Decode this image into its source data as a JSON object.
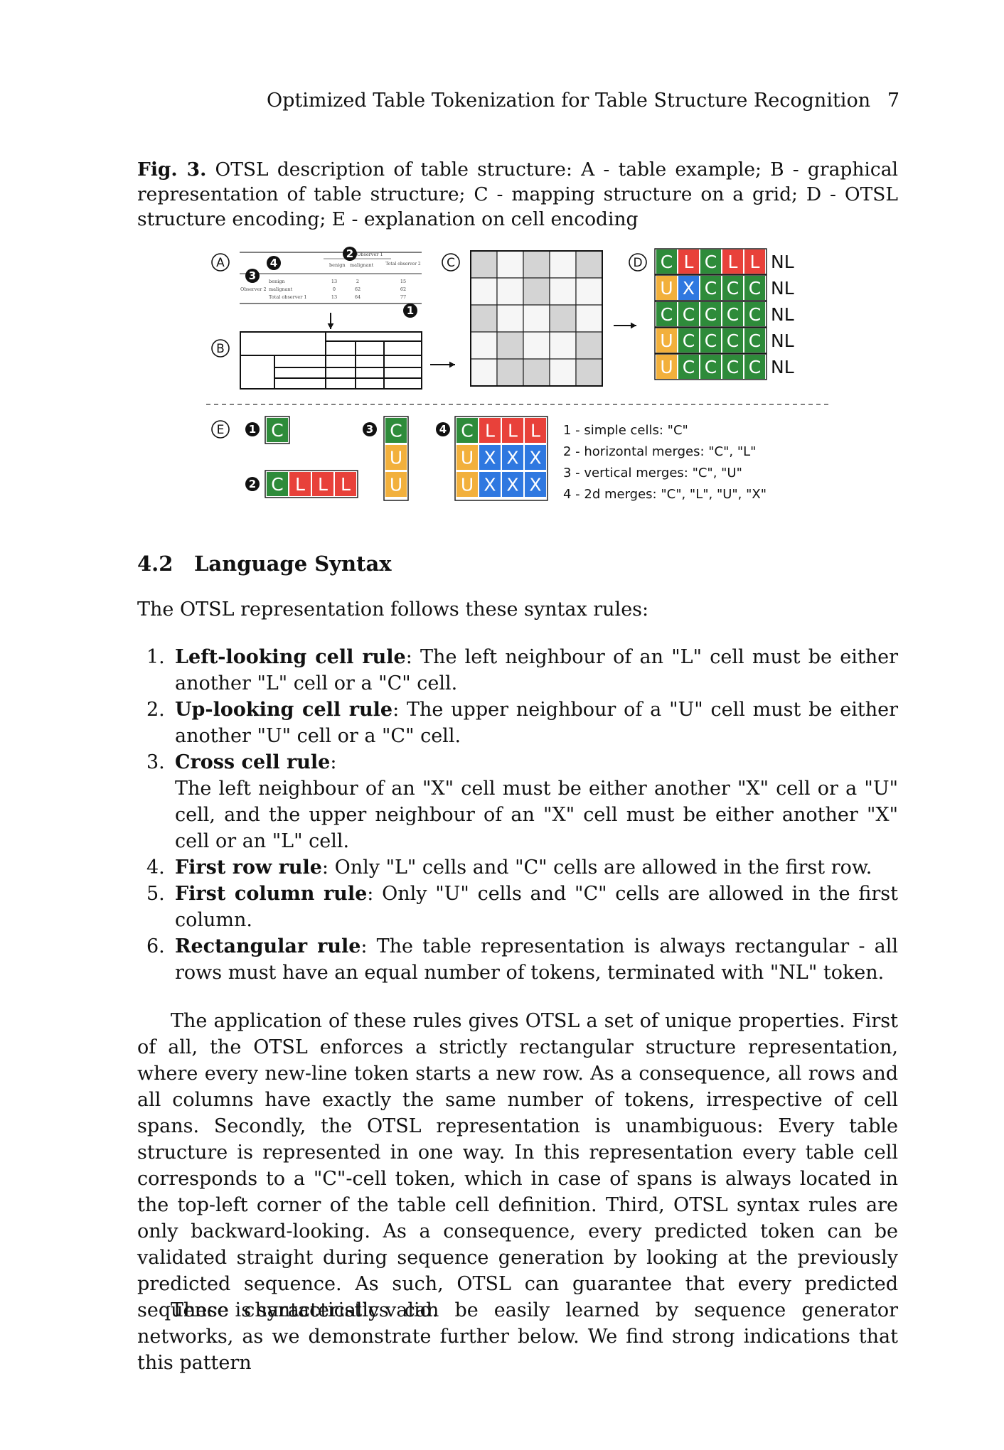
{
  "running_head": {
    "title": "Optimized Table Tokenization for Table Structure Recognition",
    "page_number": "7"
  },
  "caption": {
    "label": "Fig. 3.",
    "text": "OTSL description of table structure: A - table example; B - graphical representation of table structure; C - mapping structure on a grid; D - OTSL structure encoding; E - explanation on cell encoding"
  },
  "figure": {
    "panel_labels": [
      "A",
      "B",
      "C",
      "D",
      "E"
    ],
    "markers": [
      "1",
      "2",
      "3",
      "4"
    ],
    "table_example": {
      "observer1": "Observer 1",
      "benign": "benign",
      "malignant": "malignant",
      "total_observer2": "Total observer 2",
      "observer2": "Observer 2",
      "total_observer1": "Total observer 1",
      "rows": [
        [
          "13",
          "2",
          "15"
        ],
        [
          "0",
          "62",
          "62"
        ],
        [
          "13",
          "64",
          "77"
        ]
      ]
    },
    "otsl_grid": [
      [
        "C",
        "L",
        "C",
        "L",
        "L"
      ],
      [
        "U",
        "X",
        "C",
        "C",
        "C"
      ],
      [
        "C",
        "C",
        "C",
        "C",
        "C"
      ],
      [
        "U",
        "C",
        "C",
        "C",
        "C"
      ],
      [
        "U",
        "C",
        "C",
        "C",
        "C"
      ]
    ],
    "nl_token": "NL",
    "examples": {
      "simple": [
        "C"
      ],
      "horizontal": [
        "C",
        "L",
        "L",
        "L"
      ],
      "vertical": [
        "C",
        "U",
        "U"
      ],
      "two_d": [
        [
          "C",
          "L",
          "L",
          "L"
        ],
        [
          "U",
          "X",
          "X",
          "X"
        ],
        [
          "U",
          "X",
          "X",
          "X"
        ]
      ]
    },
    "legend": [
      "1 - simple cells: \"C\"",
      "2 - horizontal merges: \"C\", \"L\"",
      "3 - vertical merges: \"C\", \"U\"",
      "4 - 2d merges: \"C\", \"L\", \"U\", \"X\""
    ],
    "colors": {
      "C": "#2e8b3a",
      "L": "#e8413a",
      "U": "#f2b03c",
      "X": "#2f78e0"
    }
  },
  "section": {
    "number": "4.2",
    "title": "Language Syntax"
  },
  "intro": "The OTSL representation follows these syntax rules:",
  "rules": [
    {
      "num": "1.",
      "name": "Left-looking cell rule",
      "text": ": The left neighbour of an \"L\" cell must be either another \"L\" cell or a \"C\" cell."
    },
    {
      "num": "2.",
      "name": "Up-looking cell rule",
      "text": ": The upper neighbour of a \"U\" cell must be either another \"U\" cell or a \"C\" cell."
    },
    {
      "num": "3.",
      "name": "Cross cell rule",
      "text": ":",
      "detail": "The left neighbour of an \"X\" cell must be either another \"X\" cell or a \"U\" cell, and the upper neighbour of an \"X\" cell must be either another \"X\" cell or an \"L\" cell."
    },
    {
      "num": "4.",
      "name": "First row rule",
      "text": ": Only \"L\" cells and \"C\" cells are allowed in the first row."
    },
    {
      "num": "5.",
      "name": "First column rule",
      "text": ": Only \"U\" cells and \"C\" cells are allowed in the first column."
    },
    {
      "num": "6.",
      "name": "Rectangular rule",
      "text": ": The table representation is always rectangular - all rows must have an equal number of tokens, terminated with \"NL\" token."
    }
  ],
  "paragraphs": [
    "The application of these rules gives OTSL a set of unique properties. First of all, the OTSL enforces a strictly rectangular structure representation, where every new-line token starts a new row. As a consequence, all rows and all columns have exactly the same number of tokens, irrespective of cell spans. Secondly, the OTSL representation is unambiguous: Every table structure is represented in one way. In this representation every table cell corresponds to a \"C\"-cell token, which in case of spans is always located in the top-left corner of the table cell definition. Third, OTSL syntax rules are only backward-looking. As a consequence, every predicted token can be validated straight during sequence generation by looking at the previously predicted sequence. As such, OTSL can guarantee that every predicted sequence is syntactically valid.",
    "These characteristics can be easily learned by sequence generator networks, as we demonstrate further below. We find strong indications that this pattern"
  ]
}
